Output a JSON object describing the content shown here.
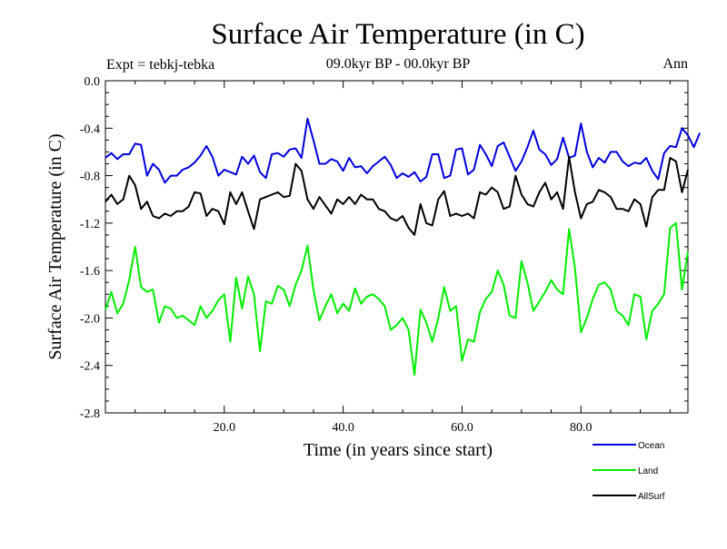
{
  "chart_data": {
    "type": "line",
    "title": "Surface Air Temperature (in C)",
    "subtitle": "09.0kyr BP - 00.0kyr BP",
    "experiment_label": "Expt = tebkj-tebka",
    "season_label": "Ann",
    "xlabel": "Time (in years since start)",
    "ylabel": "Surface Air Temperature (in C)",
    "xlim": [
      0,
      98
    ],
    "ylim": [
      -2.8,
      0.0
    ],
    "x_ticks": [
      20,
      40,
      60,
      80
    ],
    "x_tick_labels": [
      "20.0",
      "40.0",
      "60.0",
      "80.0"
    ],
    "y_ticks": [
      0.0,
      -0.4,
      -0.8,
      -1.2,
      -1.6,
      -2.0,
      -2.4,
      -2.8
    ],
    "y_tick_labels": [
      "0.0",
      "-0.4",
      "-0.8",
      "-1.2",
      "-1.6",
      "-2.0",
      "-2.4",
      "-2.8"
    ],
    "x_start": 0,
    "x_step": 1,
    "series": [
      {
        "name": "Ocean",
        "color": "#0000dd",
        "values": [
          -0.65,
          -0.61,
          -0.66,
          -0.62,
          -0.62,
          -0.53,
          -0.54,
          -0.8,
          -0.7,
          -0.75,
          -0.86,
          -0.8,
          -0.8,
          -0.75,
          -0.73,
          -0.69,
          -0.63,
          -0.55,
          -0.64,
          -0.8,
          -0.75,
          -0.77,
          -0.79,
          -0.64,
          -0.7,
          -0.63,
          -0.77,
          -0.82,
          -0.62,
          -0.61,
          -0.64,
          -0.58,
          -0.57,
          -0.65,
          -0.32,
          -0.5,
          -0.7,
          -0.7,
          -0.66,
          -0.68,
          -0.76,
          -0.65,
          -0.73,
          -0.72,
          -0.78,
          -0.72,
          -0.68,
          -0.64,
          -0.71,
          -0.82,
          -0.78,
          -0.81,
          -0.77,
          -0.85,
          -0.81,
          -0.62,
          -0.62,
          -0.82,
          -0.8,
          -0.58,
          -0.57,
          -0.79,
          -0.75,
          -0.54,
          -0.62,
          -0.72,
          -0.55,
          -0.52,
          -0.64,
          -0.76,
          -0.68,
          -0.56,
          -0.42,
          -0.58,
          -0.62,
          -0.71,
          -0.66,
          -0.48,
          -0.65,
          -0.63,
          -0.36,
          -0.6,
          -0.73,
          -0.65,
          -0.69,
          -0.6,
          -0.6,
          -0.68,
          -0.72,
          -0.69,
          -0.7,
          -0.65,
          -0.76,
          -0.83,
          -0.61,
          -0.55,
          -0.56,
          -0.4,
          -0.46,
          -0.56,
          -0.44
        ],
        "label_text": "Ocean"
      },
      {
        "name": "Land",
        "color": "#00ee00",
        "values": [
          -1.93,
          -1.78,
          -1.96,
          -1.88,
          -1.68,
          -1.4,
          -1.74,
          -1.78,
          -1.76,
          -2.04,
          -1.9,
          -1.92,
          -2.0,
          -1.98,
          -2.02,
          -2.06,
          -1.9,
          -2.0,
          -1.94,
          -1.85,
          -1.8,
          -2.2,
          -1.66,
          -1.92,
          -1.65,
          -1.8,
          -2.28,
          -1.86,
          -1.88,
          -1.73,
          -1.76,
          -1.9,
          -1.72,
          -1.6,
          -1.39,
          -1.76,
          -2.02,
          -1.9,
          -1.8,
          -1.96,
          -1.88,
          -1.94,
          -1.75,
          -1.88,
          -1.82,
          -1.8,
          -1.84,
          -1.9,
          -2.1,
          -2.06,
          -2.0,
          -2.1,
          -2.48,
          -1.93,
          -2.04,
          -2.2,
          -2.0,
          -1.74,
          -1.94,
          -1.9,
          -2.36,
          -2.18,
          -2.2,
          -1.95,
          -1.84,
          -1.78,
          -1.6,
          -1.72,
          -1.98,
          -2.0,
          -1.52,
          -1.7,
          -1.94,
          -1.86,
          -1.78,
          -1.68,
          -1.76,
          -1.8,
          -1.25,
          -1.58,
          -2.12,
          -2.0,
          -1.84,
          -1.72,
          -1.7,
          -1.76,
          -1.94,
          -1.98,
          -2.06,
          -1.8,
          -1.82,
          -2.18,
          -1.94,
          -1.88,
          -1.8,
          -1.24,
          -1.2,
          -1.76,
          -1.44
        ],
        "label_text": "Land"
      },
      {
        "name": "AllSurf",
        "color": "#000000",
        "values": [
          -1.02,
          -0.96,
          -1.04,
          -1.0,
          -0.8,
          -0.88,
          -1.08,
          -1.02,
          -1.14,
          -1.16,
          -1.12,
          -1.14,
          -1.1,
          -1.1,
          -1.06,
          -0.94,
          -0.95,
          -1.14,
          -1.08,
          -1.1,
          -1.21,
          -0.94,
          -1.04,
          -0.94,
          -1.1,
          -1.25,
          -1.0,
          -0.98,
          -0.96,
          -0.94,
          -0.98,
          -0.97,
          -0.7,
          -0.76,
          -1.0,
          -1.08,
          -0.98,
          -1.05,
          -1.12,
          -1.0,
          -1.04,
          -0.98,
          -1.04,
          -0.96,
          -1.0,
          -1.0,
          -1.08,
          -1.1,
          -1.16,
          -1.18,
          -1.14,
          -1.24,
          -1.3,
          -1.04,
          -1.2,
          -1.22,
          -1.0,
          -0.93,
          -1.14,
          -1.12,
          -1.14,
          -1.12,
          -1.16,
          -0.94,
          -0.96,
          -0.9,
          -0.94,
          -1.08,
          -1.06,
          -0.8,
          -0.96,
          -1.04,
          -1.06,
          -0.94,
          -0.86,
          -1.0,
          -0.94,
          -1.08,
          -0.64,
          -0.94,
          -1.16,
          -1.04,
          -1.02,
          -0.92,
          -0.94,
          -0.98,
          -1.08,
          -1.08,
          -1.1,
          -1.0,
          -1.04,
          -1.23,
          -0.98,
          -0.92,
          -0.92,
          -0.65,
          -0.68,
          -0.94,
          -0.75
        ],
        "label_text": "AllSurf"
      }
    ],
    "legend_position": "bottom-right"
  }
}
